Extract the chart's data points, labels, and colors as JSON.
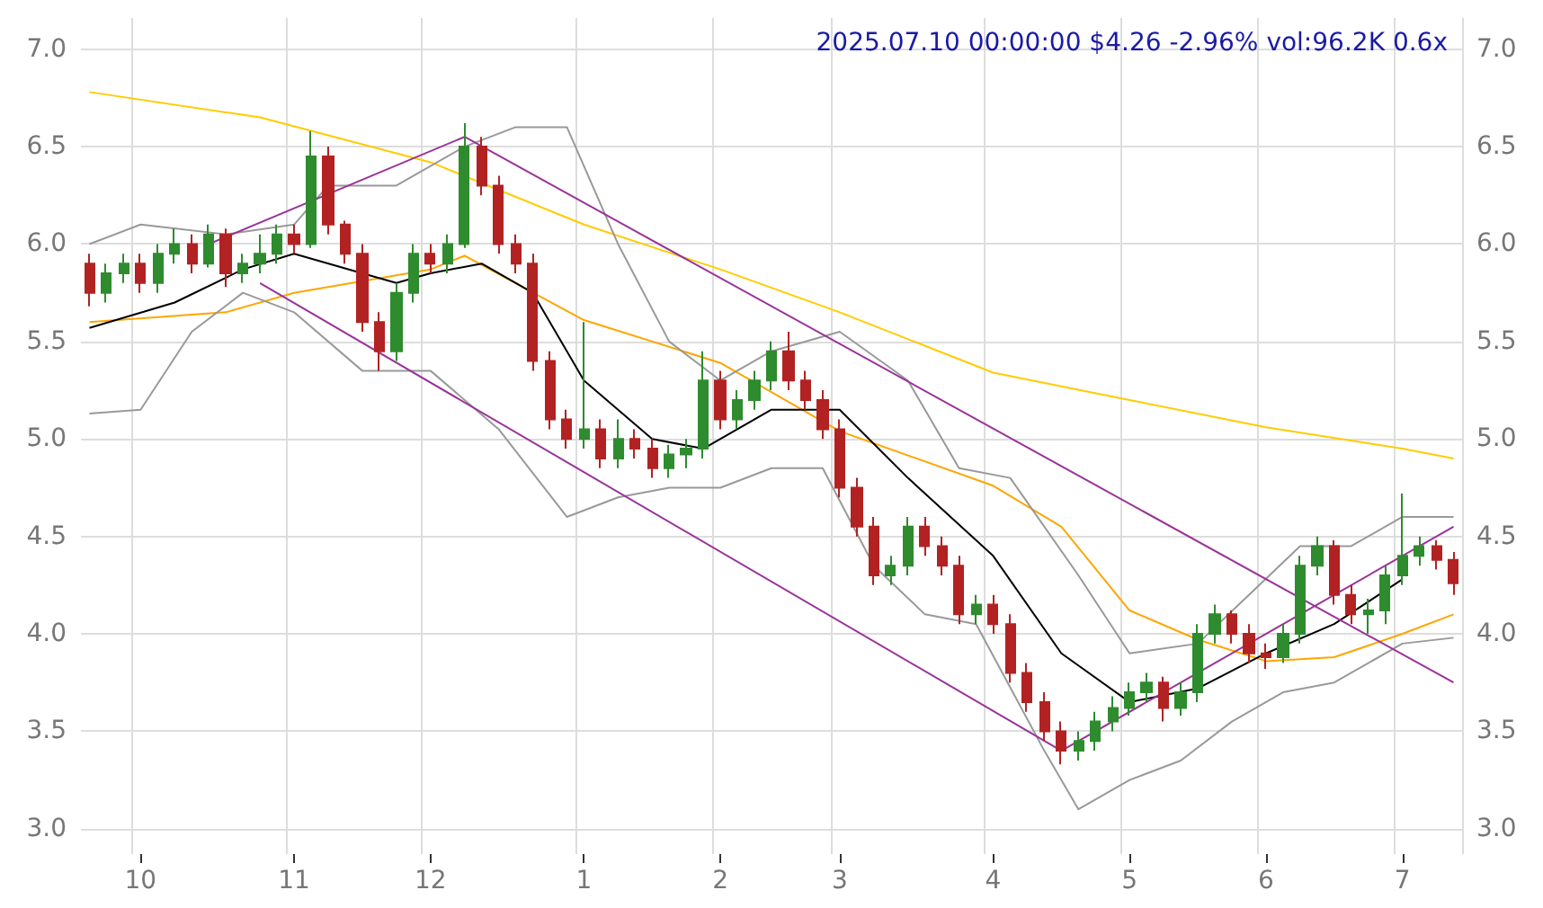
{
  "chart_data": {
    "type": "candlestick",
    "title": "2025.07.10 00:00:00 $4.26 -2.96% vol:96.2K 0.6x",
    "categories": [
      null,
      null,
      null,
      "10",
      null,
      null,
      null,
      null,
      null,
      null,
      null,
      null,
      "11",
      null,
      null,
      null,
      null,
      null,
      null,
      null,
      "12",
      null,
      null,
      null,
      null,
      null,
      null,
      null,
      null,
      "1",
      null,
      null,
      null,
      null,
      null,
      null,
      null,
      "2",
      null,
      null,
      null,
      null,
      null,
      null,
      "3",
      null,
      null,
      null,
      null,
      null,
      null,
      null,
      null,
      "4",
      null,
      null,
      null,
      null,
      null,
      null,
      null,
      "5",
      null,
      null,
      null,
      null,
      null,
      null,
      null,
      "6",
      null,
      null,
      null,
      null,
      null,
      null,
      null,
      "7",
      null,
      null,
      null
    ],
    "ohlc": [
      [
        5.9,
        5.95,
        5.68,
        5.75
      ],
      [
        5.75,
        5.9,
        5.7,
        5.85
      ],
      [
        5.85,
        5.95,
        5.8,
        5.9
      ],
      [
        5.9,
        5.95,
        5.75,
        5.8
      ],
      [
        5.8,
        6.0,
        5.75,
        5.95
      ],
      [
        5.95,
        6.08,
        5.9,
        6.0
      ],
      [
        6.0,
        6.05,
        5.85,
        5.9
      ],
      [
        5.9,
        6.1,
        5.88,
        6.05
      ],
      [
        6.05,
        6.08,
        5.78,
        5.85
      ],
      [
        5.85,
        5.95,
        5.8,
        5.9
      ],
      [
        5.9,
        6.05,
        5.85,
        5.95
      ],
      [
        5.95,
        6.1,
        5.9,
        6.05
      ],
      [
        6.05,
        6.1,
        5.95,
        6.0
      ],
      [
        6.0,
        6.58,
        5.98,
        6.45
      ],
      [
        6.45,
        6.5,
        6.05,
        6.1
      ],
      [
        6.1,
        6.12,
        5.9,
        5.95
      ],
      [
        5.95,
        6.0,
        5.55,
        5.6
      ],
      [
        5.6,
        5.65,
        5.35,
        5.45
      ],
      [
        5.45,
        5.8,
        5.4,
        5.75
      ],
      [
        5.75,
        6.0,
        5.7,
        5.95
      ],
      [
        5.95,
        6.0,
        5.85,
        5.9
      ],
      [
        5.9,
        6.05,
        5.85,
        6.0
      ],
      [
        6.0,
        6.62,
        5.98,
        6.5
      ],
      [
        6.5,
        6.55,
        6.25,
        6.3
      ],
      [
        6.3,
        6.35,
        5.95,
        6.0
      ],
      [
        6.0,
        6.05,
        5.85,
        5.9
      ],
      [
        5.9,
        5.95,
        5.35,
        5.4
      ],
      [
        5.4,
        5.45,
        5.05,
        5.1
      ],
      [
        5.1,
        5.15,
        4.95,
        5.0
      ],
      [
        5.0,
        5.6,
        4.95,
        5.05
      ],
      [
        5.05,
        5.1,
        4.85,
        4.9
      ],
      [
        4.9,
        5.1,
        4.85,
        5.0
      ],
      [
        5.0,
        5.05,
        4.9,
        4.95
      ],
      [
        4.95,
        5.0,
        4.8,
        4.85
      ],
      [
        4.85,
        4.97,
        4.8,
        4.92
      ],
      [
        4.92,
        5.0,
        4.85,
        4.95
      ],
      [
        4.95,
        5.45,
        4.9,
        5.3
      ],
      [
        5.3,
        5.35,
        5.05,
        5.1
      ],
      [
        5.1,
        5.25,
        5.05,
        5.2
      ],
      [
        5.2,
        5.35,
        5.15,
        5.3
      ],
      [
        5.3,
        5.5,
        5.25,
        5.45
      ],
      [
        5.45,
        5.55,
        5.25,
        5.3
      ],
      [
        5.3,
        5.35,
        5.15,
        5.2
      ],
      [
        5.2,
        5.25,
        5.0,
        5.05
      ],
      [
        5.05,
        5.1,
        4.7,
        4.75
      ],
      [
        4.75,
        4.8,
        4.5,
        4.55
      ],
      [
        4.55,
        4.6,
        4.25,
        4.3
      ],
      [
        4.3,
        4.4,
        4.25,
        4.35
      ],
      [
        4.35,
        4.6,
        4.3,
        4.55
      ],
      [
        4.55,
        4.6,
        4.4,
        4.45
      ],
      [
        4.45,
        4.5,
        4.3,
        4.35
      ],
      [
        4.35,
        4.4,
        4.05,
        4.1
      ],
      [
        4.1,
        4.2,
        4.05,
        4.15
      ],
      [
        4.15,
        4.2,
        4.0,
        4.05
      ],
      [
        4.05,
        4.1,
        3.75,
        3.8
      ],
      [
        3.8,
        3.85,
        3.6,
        3.65
      ],
      [
        3.65,
        3.7,
        3.45,
        3.5
      ],
      [
        3.5,
        3.55,
        3.33,
        3.4
      ],
      [
        3.4,
        3.5,
        3.35,
        3.45
      ],
      [
        3.45,
        3.6,
        3.4,
        3.55
      ],
      [
        3.55,
        3.68,
        3.5,
        3.62
      ],
      [
        3.62,
        3.75,
        3.58,
        3.7
      ],
      [
        3.7,
        3.8,
        3.65,
        3.75
      ],
      [
        3.75,
        3.78,
        3.55,
        3.62
      ],
      [
        3.62,
        3.75,
        3.58,
        3.7
      ],
      [
        3.7,
        4.05,
        3.65,
        4.0
      ],
      [
        4.0,
        4.15,
        3.95,
        4.1
      ],
      [
        4.1,
        4.12,
        3.95,
        4.0
      ],
      [
        4.0,
        4.05,
        3.85,
        3.9
      ],
      [
        3.9,
        3.95,
        3.82,
        3.88
      ],
      [
        3.88,
        4.05,
        3.85,
        4.0
      ],
      [
        4.0,
        4.4,
        3.95,
        4.35
      ],
      [
        4.35,
        4.5,
        4.3,
        4.45
      ],
      [
        4.45,
        4.48,
        4.15,
        4.2
      ],
      [
        4.2,
        4.25,
        4.05,
        4.1
      ],
      [
        4.1,
        4.18,
        4.0,
        4.12
      ],
      [
        4.12,
        4.35,
        4.05,
        4.3
      ],
      [
        4.3,
        4.72,
        4.25,
        4.4
      ],
      [
        4.4,
        4.5,
        4.35,
        4.45
      ],
      [
        4.45,
        4.48,
        4.33,
        4.38
      ],
      [
        4.38,
        4.42,
        4.2,
        4.26
      ]
    ],
    "series": [
      {
        "type": "line",
        "color": "#ffcc00",
        "values": [
          6.78,
          null,
          null,
          null,
          null,
          null,
          null,
          null,
          null,
          null,
          6.65,
          null,
          null,
          null,
          null,
          null,
          null,
          null,
          null,
          null,
          6.42,
          null,
          null,
          null,
          null,
          null,
          null,
          null,
          null,
          6.1,
          null,
          null,
          null,
          null,
          null,
          null,
          null,
          5.87,
          null,
          null,
          null,
          null,
          null,
          null,
          5.65,
          null,
          null,
          null,
          null,
          null,
          null,
          null,
          null,
          5.34,
          null,
          null,
          null,
          null,
          null,
          null,
          null,
          5.2,
          null,
          null,
          null,
          null,
          null,
          null,
          null,
          5.06,
          null,
          null,
          null,
          null,
          null,
          null,
          null,
          4.95,
          null,
          null,
          4.9
        ]
      },
      {
        "type": "line",
        "color": "#ffa500",
        "values": [
          5.6,
          null,
          null,
          null,
          null,
          null,
          null,
          null,
          5.65,
          null,
          null,
          null,
          5.75,
          null,
          null,
          null,
          null,
          null,
          null,
          null,
          5.87,
          null,
          5.94,
          null,
          null,
          null,
          null,
          null,
          null,
          5.61,
          null,
          null,
          null,
          null,
          null,
          null,
          null,
          5.39,
          null,
          null,
          null,
          null,
          null,
          null,
          5.04,
          null,
          null,
          null,
          null,
          null,
          null,
          null,
          null,
          4.76,
          null,
          null,
          null,
          4.55,
          null,
          null,
          null,
          4.12,
          null,
          null,
          null,
          3.97,
          null,
          null,
          null,
          3.86,
          null,
          null,
          null,
          3.88,
          null,
          null,
          null,
          4.0,
          null,
          null,
          4.1
        ]
      },
      {
        "type": "line",
        "color": "#000000",
        "values": [
          5.57,
          null,
          null,
          null,
          null,
          5.7,
          null,
          null,
          null,
          5.87,
          null,
          null,
          5.95,
          null,
          null,
          null,
          5.85,
          null,
          5.8,
          null,
          5.85,
          null,
          null,
          5.9,
          null,
          null,
          5.75,
          null,
          null,
          5.3,
          null,
          null,
          null,
          5.0,
          null,
          null,
          4.95,
          null,
          null,
          null,
          5.15,
          null,
          null,
          null,
          5.15,
          null,
          null,
          null,
          4.8,
          null,
          null,
          null,
          null,
          4.4,
          null,
          null,
          null,
          3.9,
          null,
          null,
          null,
          3.65,
          null,
          null,
          null,
          3.72,
          null,
          null,
          null,
          3.9,
          null,
          null,
          null,
          4.05,
          null,
          null,
          null,
          4.28,
          null,
          null,
          null
        ]
      },
      {
        "type": "line",
        "color": "#999999",
        "values": [
          6.0,
          null,
          null,
          6.1,
          null,
          null,
          null,
          null,
          6.05,
          null,
          null,
          null,
          6.1,
          null,
          6.3,
          null,
          null,
          null,
          6.3,
          null,
          null,
          null,
          6.5,
          null,
          null,
          6.6,
          null,
          null,
          6.6,
          null,
          null,
          6.0,
          null,
          null,
          5.5,
          null,
          null,
          5.3,
          null,
          null,
          5.45,
          null,
          null,
          null,
          5.55,
          null,
          null,
          null,
          5.3,
          null,
          null,
          4.85,
          null,
          null,
          4.8,
          null,
          null,
          null,
          4.3,
          null,
          null,
          3.9,
          null,
          null,
          null,
          3.95,
          null,
          null,
          4.2,
          null,
          null,
          4.45,
          null,
          null,
          4.45,
          null,
          null,
          4.6,
          null,
          null,
          4.6
        ]
      },
      {
        "type": "line",
        "color": "#999999",
        "values": [
          5.13,
          null,
          null,
          5.15,
          null,
          null,
          5.55,
          null,
          null,
          5.75,
          null,
          null,
          5.65,
          null,
          null,
          null,
          5.35,
          null,
          null,
          null,
          5.35,
          null,
          null,
          null,
          5.05,
          null,
          null,
          null,
          4.6,
          null,
          null,
          4.7,
          null,
          null,
          4.75,
          null,
          null,
          4.75,
          null,
          null,
          4.85,
          null,
          null,
          4.85,
          null,
          null,
          4.35,
          null,
          null,
          4.1,
          null,
          null,
          4.05,
          null,
          null,
          null,
          3.4,
          null,
          3.1,
          null,
          null,
          3.25,
          null,
          null,
          3.35,
          null,
          null,
          3.55,
          null,
          null,
          3.7,
          null,
          null,
          3.75,
          null,
          null,
          null,
          3.95,
          null,
          null,
          3.98
        ]
      },
      {
        "type": "line",
        "color": "#993399",
        "values": [
          null,
          null,
          null,
          null,
          null,
          null,
          null,
          null,
          null,
          null,
          null,
          null,
          null,
          null,
          null,
          null,
          null,
          null,
          null,
          null,
          null,
          null,
          6.55,
          null,
          null,
          null,
          null,
          null,
          null,
          null,
          null,
          null,
          null,
          null,
          null,
          null,
          null,
          null,
          null,
          null,
          null,
          null,
          null,
          null,
          null,
          null,
          null,
          null,
          null,
          null,
          null,
          null,
          null,
          null,
          null,
          null,
          null,
          null,
          null,
          null,
          null,
          null,
          null,
          null,
          null,
          null,
          null,
          null,
          null,
          null,
          null,
          null,
          null,
          null,
          null,
          null,
          null,
          null,
          null,
          null,
          3.75
        ]
      },
      {
        "type": "line",
        "color": "#993399",
        "values": [
          null,
          null,
          null,
          null,
          null,
          null,
          null,
          null,
          null,
          null,
          5.8,
          null,
          null,
          null,
          null,
          null,
          null,
          null,
          null,
          null,
          null,
          null,
          null,
          null,
          null,
          null,
          null,
          null,
          null,
          null,
          null,
          null,
          null,
          null,
          null,
          null,
          null,
          null,
          null,
          null,
          null,
          null,
          null,
          null,
          null,
          null,
          null,
          null,
          null,
          null,
          null,
          null,
          null,
          null,
          null,
          null,
          null,
          3.4,
          null,
          null,
          null,
          null,
          null,
          null,
          null,
          null,
          null,
          null,
          null,
          null,
          null,
          null,
          null,
          null,
          null,
          null,
          null,
          null,
          null,
          null,
          null
        ]
      },
      {
        "type": "line",
        "color": "#993399",
        "values": [
          null,
          null,
          null,
          null,
          null,
          null,
          null,
          6.0,
          null,
          null,
          null,
          null,
          null,
          null,
          null,
          null,
          null,
          null,
          null,
          null,
          null,
          null,
          6.55,
          null,
          null,
          null,
          null,
          null,
          null,
          null,
          null,
          null,
          null,
          null,
          null,
          null,
          null,
          null,
          null,
          null,
          null,
          null,
          null,
          null,
          null,
          null,
          null,
          null,
          null,
          null,
          null,
          null,
          null,
          null,
          null,
          null,
          null,
          null,
          null,
          null,
          null,
          null,
          null,
          null,
          null,
          null,
          null,
          null,
          null,
          null,
          null,
          null,
          null,
          null,
          null,
          null,
          null,
          null,
          null,
          null,
          null
        ]
      },
      {
        "type": "line",
        "color": "#993399",
        "values": [
          null,
          null,
          null,
          null,
          null,
          null,
          null,
          null,
          null,
          null,
          null,
          null,
          null,
          null,
          null,
          null,
          null,
          null,
          null,
          null,
          null,
          null,
          null,
          null,
          null,
          null,
          null,
          null,
          null,
          null,
          null,
          null,
          null,
          null,
          null,
          null,
          null,
          null,
          null,
          null,
          null,
          null,
          null,
          null,
          null,
          null,
          null,
          null,
          null,
          null,
          null,
          null,
          null,
          null,
          null,
          null,
          null,
          3.4,
          null,
          null,
          null,
          null,
          null,
          null,
          null,
          null,
          null,
          null,
          null,
          null,
          null,
          null,
          null,
          null,
          null,
          null,
          null,
          null,
          null,
          null,
          4.55
        ]
      }
    ],
    "ylim": [
      2.87,
      7.16
    ],
    "yticks": [
      {
        "value": 3,
        "label": "3.0"
      },
      {
        "value": 3.5,
        "label": "3.5"
      },
      {
        "value": 4,
        "label": "4.0"
      },
      {
        "value": 4.5,
        "label": "4.5"
      },
      {
        "value": 5,
        "label": "5.0"
      },
      {
        "value": 5.5,
        "label": "5.5"
      },
      {
        "value": 6,
        "label": "6.0"
      },
      {
        "value": 6.5,
        "label": "6.5"
      },
      {
        "value": 7,
        "label": "7.0"
      }
    ],
    "y2lim": [
      2.87,
      7.16
    ],
    "y2ticks": [
      {
        "value": 3,
        "label": "3.0"
      },
      {
        "value": 3.5,
        "label": "3.5"
      },
      {
        "value": 4,
        "label": "4.0"
      },
      {
        "value": 4.5,
        "label": "4.5"
      },
      {
        "value": 5,
        "label": "5.0"
      },
      {
        "value": 5.5,
        "label": "5.5"
      },
      {
        "value": 6,
        "label": "6.0"
      },
      {
        "value": 6.5,
        "label": "6.5"
      },
      {
        "value": 7,
        "label": "7.0"
      }
    ],
    "grid": true
  }
}
